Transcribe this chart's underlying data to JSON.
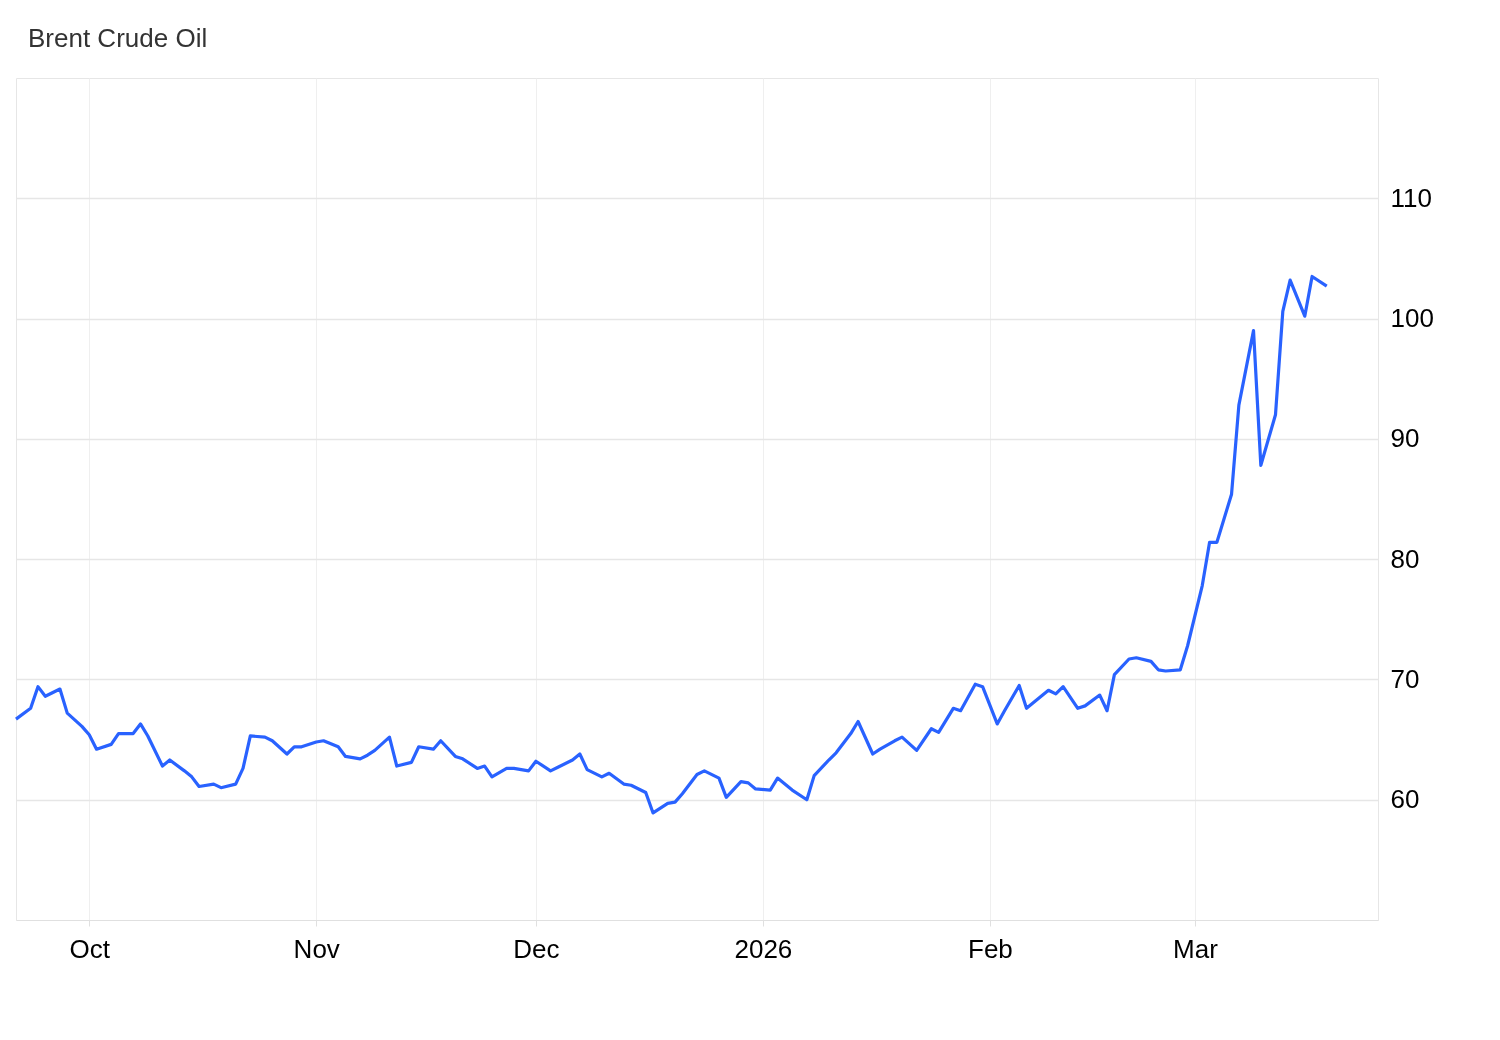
{
  "chart_data": {
    "type": "line",
    "title": "Brent Crude Oil",
    "color": "#2962ff",
    "grid": true,
    "x": [
      "2025-09-21",
      "2025-09-23",
      "2025-09-24",
      "2025-09-25",
      "2025-09-27",
      "2025-09-28",
      "2025-09-30",
      "2025-10-01",
      "2025-10-02",
      "2025-10-04",
      "2025-10-05",
      "2025-10-07",
      "2025-10-08",
      "2025-10-09",
      "2025-10-11",
      "2025-10-12",
      "2025-10-14",
      "2025-10-15",
      "2025-10-16",
      "2025-10-18",
      "2025-10-19",
      "2025-10-21",
      "2025-10-22",
      "2025-10-23",
      "2025-10-25",
      "2025-10-26",
      "2025-10-28",
      "2025-10-29",
      "2025-10-30",
      "2025-11-01",
      "2025-11-02",
      "2025-11-04",
      "2025-11-05",
      "2025-11-07",
      "2025-11-08",
      "2025-11-09",
      "2025-11-11",
      "2025-11-12",
      "2025-11-14",
      "2025-11-15",
      "2025-11-17",
      "2025-11-18",
      "2025-11-20",
      "2025-11-21",
      "2025-11-23",
      "2025-11-24",
      "2025-11-25",
      "2025-11-27",
      "2025-11-28",
      "2025-11-30",
      "2025-12-01",
      "2025-12-03",
      "2025-12-04",
      "2025-12-06",
      "2025-12-07",
      "2025-12-08",
      "2025-12-10",
      "2025-12-11",
      "2025-12-13",
      "2025-12-14",
      "2025-12-16",
      "2025-12-17",
      "2025-12-19",
      "2025-12-20",
      "2025-12-21",
      "2025-12-23",
      "2025-12-24",
      "2025-12-26",
      "2025-12-27",
      "2025-12-29",
      "2025-12-30",
      "2025-12-31",
      "2026-01-02",
      "2026-01-03",
      "2026-01-05",
      "2026-01-07",
      "2026-01-08",
      "2026-01-10",
      "2026-01-11",
      "2026-01-13",
      "2026-01-14",
      "2026-01-16",
      "2026-01-17",
      "2026-01-19",
      "2026-01-20",
      "2026-01-22",
      "2026-01-24",
      "2026-01-25",
      "2026-01-27",
      "2026-01-28",
      "2026-01-30",
      "2026-01-31",
      "2026-02-02",
      "2026-02-03",
      "2026-02-05",
      "2026-02-06",
      "2026-02-07",
      "2026-02-09",
      "2026-02-10",
      "2026-02-11",
      "2026-02-13",
      "2026-02-14",
      "2026-02-16",
      "2026-02-17",
      "2026-02-18",
      "2026-02-20",
      "2026-02-21",
      "2026-02-23",
      "2026-02-24",
      "2026-02-25",
      "2026-02-27",
      "2026-02-28",
      "2026-03-02",
      "2026-03-03",
      "2026-03-04",
      "2026-03-06",
      "2026-03-07",
      "2026-03-09",
      "2026-03-10",
      "2026-03-12",
      "2026-03-13",
      "2026-03-14",
      "2026-03-16",
      "2026-03-17",
      "2026-03-19"
    ],
    "values": [
      66.7,
      67.6,
      69.4,
      68.6,
      69.2,
      67.2,
      66.1,
      65.4,
      64.2,
      64.6,
      65.5,
      65.5,
      66.3,
      65.3,
      62.8,
      63.3,
      62.4,
      61.9,
      61.1,
      61.3,
      61.0,
      61.3,
      62.6,
      65.3,
      65.2,
      64.9,
      63.8,
      64.4,
      64.4,
      64.8,
      64.9,
      64.4,
      63.6,
      63.4,
      63.7,
      64.1,
      65.2,
      62.8,
      63.1,
      64.4,
      64.2,
      64.9,
      63.6,
      63.4,
      62.6,
      62.8,
      61.9,
      62.6,
      62.6,
      62.4,
      63.2,
      62.4,
      62.7,
      63.3,
      63.8,
      62.5,
      61.9,
      62.2,
      61.3,
      61.2,
      60.6,
      58.9,
      59.7,
      59.8,
      60.5,
      62.1,
      62.4,
      61.8,
      60.2,
      61.5,
      61.4,
      60.9,
      60.8,
      61.8,
      60.8,
      60.0,
      62.0,
      63.3,
      63.9,
      65.5,
      66.5,
      63.8,
      64.2,
      64.9,
      65.2,
      64.1,
      65.9,
      65.6,
      67.6,
      67.4,
      69.6,
      69.4,
      66.3,
      67.4,
      69.5,
      67.6,
      68.1,
      69.1,
      68.8,
      69.4,
      67.6,
      67.8,
      68.7,
      67.4,
      70.4,
      71.7,
      71.8,
      71.5,
      70.8,
      70.7,
      70.8,
      72.8,
      77.8,
      81.4,
      81.4,
      85.4,
      92.8,
      99.0,
      87.8,
      92.0,
      100.6,
      103.2,
      100.2,
      103.5,
      102.7
    ],
    "xlim": [
      "2025-09-21",
      "2026-03-26"
    ],
    "xticks": [
      {
        "value": "2025-10-01",
        "label": "Oct"
      },
      {
        "value": "2025-11-01",
        "label": "Nov"
      },
      {
        "value": "2025-12-01",
        "label": "Dec"
      },
      {
        "value": "2026-01-01",
        "label": "2026"
      },
      {
        "value": "2026-02-01",
        "label": "Feb"
      },
      {
        "value": "2026-03-01",
        "label": "Mar"
      }
    ],
    "ylim": [
      50,
      120
    ],
    "yticks": [
      60,
      70,
      80,
      90,
      100,
      110
    ]
  }
}
